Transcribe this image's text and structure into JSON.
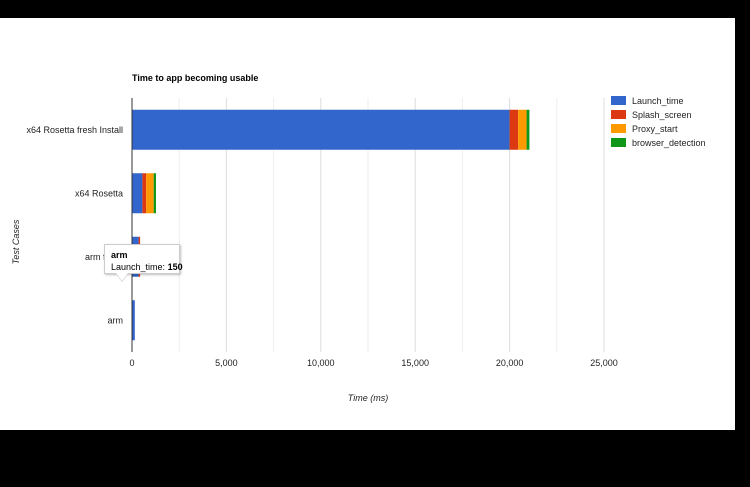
{
  "chart_data": {
    "type": "bar",
    "orientation": "horizontal",
    "stacked": true,
    "title": "Time to app becoming usable",
    "xlabel": "Time (ms)",
    "ylabel": "Test Cases",
    "xlim": [
      0,
      26000
    ],
    "xticks": [
      0,
      5000,
      10000,
      15000,
      20000,
      25000
    ],
    "xtick_labels": [
      "0",
      "5,000",
      "10,000",
      "15,000",
      "20,000",
      "25,000"
    ],
    "grid": true,
    "legend_position": "right",
    "categories": [
      "x64 Rosetta fresh Install",
      "x64 Rosetta",
      "arm fresh",
      "arm"
    ],
    "series": [
      {
        "name": "Launch_time",
        "color": "#3366cc",
        "values": [
          20000,
          550,
          350,
          150
        ]
      },
      {
        "name": "Splash_screen",
        "color": "#dc3912",
        "values": [
          450,
          200,
          80,
          0
        ]
      },
      {
        "name": "Proxy_start",
        "color": "#ff9900",
        "values": [
          450,
          400,
          0,
          0
        ]
      },
      {
        "name": "browser_detection",
        "color": "#109618",
        "values": [
          150,
          120,
          0,
          0
        ]
      }
    ],
    "tooltip": {
      "category": "arm",
      "series": "Launch_time",
      "label": "Launch_time:",
      "value": "150"
    }
  }
}
